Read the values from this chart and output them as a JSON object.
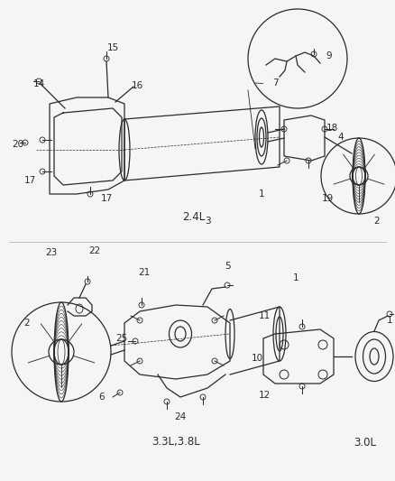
{
  "bg_color": "#f5f5f5",
  "fig_width": 4.38,
  "fig_height": 5.33,
  "dpi": 100,
  "label_24L": "2.4L",
  "label_33L": "3.3L,3.8L",
  "label_30L": "3.0L",
  "line_color": "#2a2a2a",
  "lw": 0.9,
  "font_size": 7.5
}
